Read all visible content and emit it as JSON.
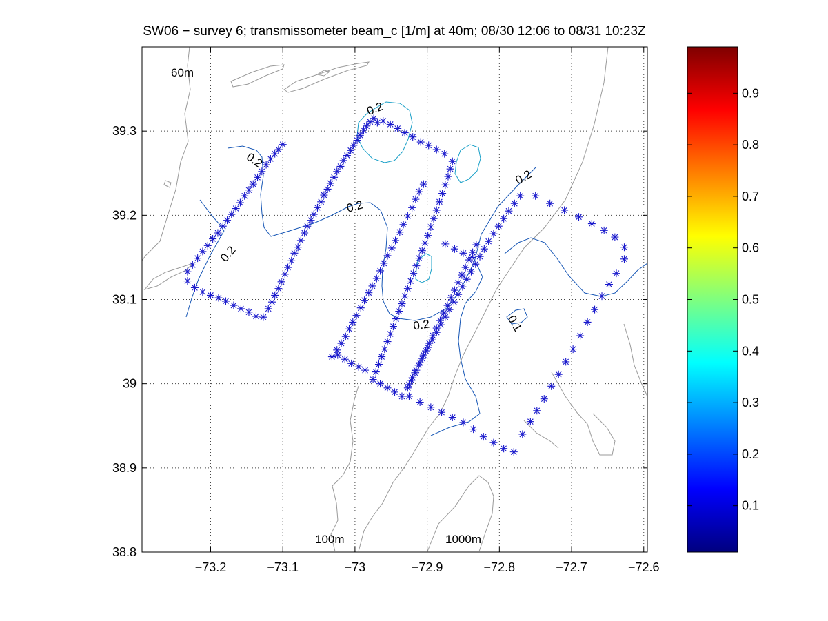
{
  "chart_data": {
    "type": "scatter",
    "title": "SW06 − survey 6; transmissometer beam_c [1/m] at 40m; 08/30 12:06 to 08/31 10:23Z",
    "xlabel": "",
    "ylabel": "",
    "xlim": [
      -73.295,
      -72.595
    ],
    "ylim": [
      38.8,
      39.4
    ],
    "x_ticks": [
      -73.2,
      -73.1,
      -73.0,
      -72.9,
      -72.8,
      -72.7,
      -72.6
    ],
    "x_tick_labels": [
      "−73.2",
      "−73.1",
      "−73",
      "−72.9",
      "−72.8",
      "−72.7",
      "−72.6"
    ],
    "y_ticks": [
      38.8,
      38.9,
      39.0,
      39.1,
      39.2,
      39.3
    ],
    "y_tick_labels": [
      "38.8",
      "38.9",
      "39",
      "39.1",
      "39.2",
      "39.3"
    ],
    "grid": true,
    "grid_style": "dotted",
    "marker": "*",
    "marker_color": "#1a1acc",
    "contour_color": "#1656b5",
    "contour_light_color": "#1aa0c8",
    "coast_color": "#9a9a9a",
    "isobath_labels": [
      "60m",
      "100m",
      "1000m"
    ],
    "contour_labels": [
      "0.2",
      "0.2",
      "0.2",
      "0.2",
      "0.2",
      "0.1"
    ],
    "colorbar": {
      "min": 0.01,
      "max": 0.99,
      "ticks": [
        0.1,
        0.2,
        0.3,
        0.4,
        0.5,
        0.6,
        0.7,
        0.8,
        0.9
      ],
      "tick_labels": [
        "0.1",
        "0.2",
        "0.3",
        "0.4",
        "0.5",
        "0.6",
        "0.7",
        "0.8",
        "0.9"
      ],
      "colormap": "jet"
    },
    "stations": [
      [
        -73.232,
        39.122
      ],
      [
        -73.222,
        39.114
      ],
      [
        -73.211,
        39.109
      ],
      [
        -73.2,
        39.105
      ],
      [
        -73.189,
        39.102
      ],
      [
        -73.179,
        39.098
      ],
      [
        -73.168,
        39.093
      ],
      [
        -73.158,
        39.089
      ],
      [
        -73.147,
        39.085
      ],
      [
        -73.137,
        39.08
      ],
      [
        -73.127,
        39.079
      ],
      [
        -73.12,
        39.089
      ],
      [
        -73.115,
        39.097
      ],
      [
        -73.111,
        39.105
      ],
      [
        -73.106,
        39.113
      ],
      [
        -73.102,
        39.121
      ],
      [
        -73.097,
        39.13
      ],
      [
        -73.093,
        39.138
      ],
      [
        -73.088,
        39.146
      ],
      [
        -73.084,
        39.155
      ],
      [
        -73.079,
        39.162
      ],
      [
        -73.075,
        39.17
      ],
      [
        -73.07,
        39.179
      ],
      [
        -73.066,
        39.187
      ],
      [
        -73.061,
        39.194
      ],
      [
        -73.057,
        39.201
      ],
      [
        -73.052,
        39.209
      ],
      [
        -73.047,
        39.216
      ],
      [
        -73.043,
        39.224
      ],
      [
        -73.038,
        39.231
      ],
      [
        -73.034,
        39.238
      ],
      [
        -73.029,
        39.245
      ],
      [
        -73.025,
        39.252
      ],
      [
        -73.02,
        39.258
      ],
      [
        -73.016,
        39.265
      ],
      [
        -73.011,
        39.271
      ],
      [
        -73.006,
        39.277
      ],
      [
        -73.002,
        39.283
      ],
      [
        -72.997,
        39.289
      ],
      [
        -72.993,
        39.295
      ],
      [
        -72.988,
        39.301
      ],
      [
        -72.984,
        39.306
      ],
      [
        -72.979,
        39.311
      ],
      [
        -72.974,
        39.315
      ],
      [
        -72.969,
        39.31
      ],
      [
        -72.961,
        39.312
      ],
      [
        -72.951,
        39.308
      ],
      [
        -72.941,
        39.303
      ],
      [
        -72.931,
        39.298
      ],
      [
        -72.92,
        39.293
      ],
      [
        -72.909,
        39.287
      ],
      [
        -72.898,
        39.283
      ],
      [
        -72.887,
        39.278
      ],
      [
        -72.876,
        39.273
      ],
      [
        -72.865,
        39.264
      ],
      [
        -72.868,
        39.255
      ],
      [
        -72.871,
        39.246
      ],
      [
        -72.875,
        39.236
      ],
      [
        -72.879,
        39.226
      ],
      [
        -72.883,
        39.216
      ],
      [
        -72.887,
        39.206
      ],
      [
        -72.891,
        39.196
      ],
      [
        -72.895,
        39.186
      ],
      [
        -72.899,
        39.176
      ],
      [
        -72.903,
        39.167
      ],
      [
        -72.907,
        39.158
      ],
      [
        -72.911,
        39.149
      ],
      [
        -72.915,
        39.14
      ],
      [
        -72.919,
        39.131
      ],
      [
        -72.923,
        39.122
      ],
      [
        -72.927,
        39.113
      ],
      [
        -72.931,
        39.104
      ],
      [
        -72.935,
        39.095
      ],
      [
        -72.939,
        39.086
      ],
      [
        -72.943,
        39.077
      ],
      [
        -72.947,
        39.068
      ],
      [
        -72.951,
        39.059
      ],
      [
        -72.955,
        39.05
      ],
      [
        -72.959,
        39.041
      ],
      [
        -72.963,
        39.032
      ],
      [
        -72.967,
        39.023
      ],
      [
        -72.971,
        39.014
      ],
      [
        -72.986,
        39.016
      ],
      [
        -72.995,
        39.02
      ],
      [
        -73.005,
        39.024
      ],
      [
        -73.014,
        39.029
      ],
      [
        -73.024,
        39.034
      ],
      [
        -73.032,
        39.032
      ],
      [
        -73.025,
        39.04
      ],
      [
        -73.019,
        39.048
      ],
      [
        -73.013,
        39.056
      ],
      [
        -73.008,
        39.065
      ],
      [
        -73.003,
        39.073
      ],
      [
        -72.998,
        39.081
      ],
      [
        -72.992,
        39.09
      ],
      [
        -72.987,
        39.099
      ],
      [
        -72.981,
        39.108
      ],
      [
        -72.976,
        39.116
      ],
      [
        -72.97,
        39.125
      ],
      [
        -72.965,
        39.134
      ],
      [
        -72.96,
        39.143
      ],
      [
        -72.955,
        39.152
      ],
      [
        -72.949,
        39.161
      ],
      [
        -72.944,
        39.17
      ],
      [
        -72.938,
        39.18
      ],
      [
        -72.933,
        39.189
      ],
      [
        -72.927,
        39.199
      ],
      [
        -72.921,
        39.209
      ],
      [
        -72.916,
        39.219
      ],
      [
        -72.911,
        39.228
      ],
      [
        -72.905,
        39.237
      ],
      [
        -73.232,
        39.133
      ],
      [
        -73.225,
        39.141
      ],
      [
        -73.218,
        39.149
      ],
      [
        -73.211,
        39.157
      ],
      [
        -73.204,
        39.164
      ],
      [
        -73.197,
        39.172
      ],
      [
        -73.19,
        39.179
      ],
      [
        -73.183,
        39.187
      ],
      [
        -73.177,
        39.194
      ],
      [
        -73.171,
        39.201
      ],
      [
        -73.165,
        39.208
      ],
      [
        -73.159,
        39.215
      ],
      [
        -73.153,
        39.223
      ],
      [
        -73.147,
        39.23
      ],
      [
        -73.141,
        39.237
      ],
      [
        -73.135,
        39.245
      ],
      [
        -73.129,
        39.252
      ],
      [
        -73.123,
        39.26
      ],
      [
        -73.117,
        39.267
      ],
      [
        -73.111,
        39.273
      ],
      [
        -73.106,
        39.278
      ],
      [
        -73.1,
        39.284
      ],
      [
        -72.975,
        39.005
      ],
      [
        -72.965,
        39.0
      ],
      [
        -72.955,
        38.995
      ],
      [
        -72.945,
        38.99
      ],
      [
        -72.935,
        38.985
      ],
      [
        -72.927,
        38.995
      ],
      [
        -72.922,
        39.004
      ],
      [
        -72.917,
        39.013
      ],
      [
        -72.912,
        39.022
      ],
      [
        -72.907,
        39.03
      ],
      [
        -72.902,
        39.039
      ],
      [
        -72.897,
        39.048
      ],
      [
        -72.892,
        39.057
      ],
      [
        -72.887,
        39.066
      ],
      [
        -72.882,
        39.075
      ],
      [
        -72.877,
        39.084
      ],
      [
        -72.872,
        39.093
      ],
      [
        -72.867,
        39.102
      ],
      [
        -72.862,
        39.111
      ],
      [
        -72.857,
        39.12
      ],
      [
        -72.852,
        39.129
      ],
      [
        -72.847,
        39.138
      ],
      [
        -72.842,
        39.147
      ],
      [
        -72.837,
        39.156
      ],
      [
        -72.832,
        39.165
      ],
      [
        -72.925,
        38.999
      ],
      [
        -72.92,
        39.007
      ],
      [
        -72.915,
        39.016
      ],
      [
        -72.91,
        39.025
      ],
      [
        -72.905,
        39.034
      ],
      [
        -72.899,
        39.043
      ],
      [
        -72.893,
        39.052
      ],
      [
        -72.887,
        39.061
      ],
      [
        -72.881,
        39.07
      ],
      [
        -72.875,
        39.079
      ],
      [
        -72.869,
        39.088
      ],
      [
        -72.863,
        39.097
      ],
      [
        -72.857,
        39.106
      ],
      [
        -72.851,
        39.115
      ],
      [
        -72.845,
        39.124
      ],
      [
        -72.839,
        39.133
      ],
      [
        -72.833,
        39.142
      ],
      [
        -72.827,
        39.151
      ],
      [
        -72.821,
        39.16
      ],
      [
        -72.815,
        39.169
      ],
      [
        -72.808,
        39.178
      ],
      [
        -72.801,
        39.187
      ],
      [
        -72.794,
        39.196
      ],
      [
        -72.787,
        39.205
      ],
      [
        -72.779,
        39.214
      ],
      [
        -72.771,
        39.223
      ],
      [
        -72.875,
        39.166
      ],
      [
        -72.862,
        39.16
      ],
      [
        -72.85,
        39.155
      ],
      [
        -72.838,
        39.15
      ],
      [
        -72.925,
        38.985
      ],
      [
        -72.91,
        38.978
      ],
      [
        -72.895,
        38.972
      ],
      [
        -72.88,
        38.966
      ],
      [
        -72.865,
        38.96
      ],
      [
        -72.85,
        38.954
      ],
      [
        -72.836,
        38.946
      ],
      [
        -72.822,
        38.937
      ],
      [
        -72.808,
        38.93
      ],
      [
        -72.794,
        38.923
      ],
      [
        -72.78,
        38.919
      ],
      [
        -72.768,
        38.94
      ],
      [
        -72.757,
        38.955
      ],
      [
        -72.748,
        38.968
      ],
      [
        -72.738,
        38.982
      ],
      [
        -72.728,
        38.997
      ],
      [
        -72.718,
        39.011
      ],
      [
        -72.708,
        39.026
      ],
      [
        -72.698,
        39.041
      ],
      [
        -72.688,
        39.057
      ],
      [
        -72.678,
        39.073
      ],
      [
        -72.668,
        39.088
      ],
      [
        -72.658,
        39.104
      ],
      [
        -72.648,
        39.118
      ],
      [
        -72.638,
        39.131
      ],
      [
        -72.627,
        39.148
      ],
      [
        -72.75,
        39.223
      ],
      [
        -72.73,
        39.214
      ],
      [
        -72.71,
        39.206
      ],
      [
        -72.69,
        39.198
      ],
      [
        -72.672,
        39.19
      ],
      [
        -72.655,
        39.182
      ],
      [
        -72.64,
        39.174
      ],
      [
        -72.627,
        39.162
      ]
    ]
  }
}
